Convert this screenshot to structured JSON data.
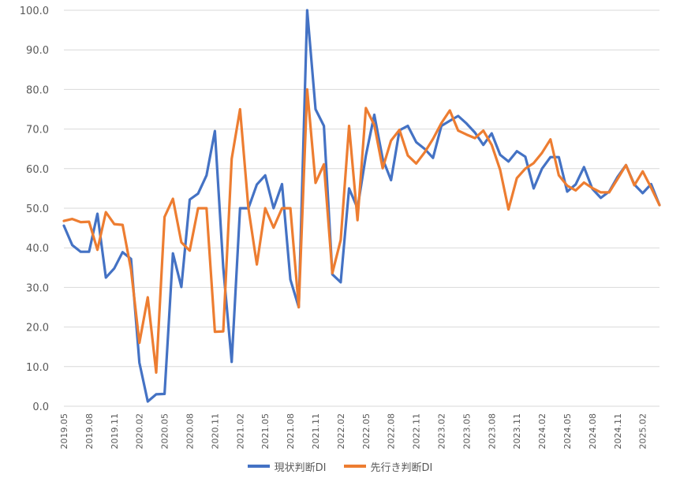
{
  "chart_data": {
    "type": "line",
    "title": "",
    "xlabel": "",
    "ylabel": "",
    "ylim": [
      0,
      100
    ],
    "y_ticks": [
      "100.0",
      "90.0",
      "80.0",
      "70.0",
      "60.0",
      "50.0",
      "40.0",
      "30.0",
      "20.0",
      "10.0",
      "0.0"
    ],
    "grid": true,
    "legend_position": "bottom",
    "x_tick_labels": [
      "2019.05",
      "2019.08",
      "2019.11",
      "2020.02",
      "2020.05",
      "2020.08",
      "2020.11",
      "2021.02",
      "2021.05",
      "2021.08",
      "2021.11",
      "2022.02",
      "2022.05",
      "2022.08",
      "2022.11",
      "2023.02",
      "2023.05",
      "2023.08",
      "2023.11",
      "2024.02",
      "2024.05",
      "2024.08",
      "2024.11",
      "2025.02"
    ],
    "x": [
      "2019.05",
      "2019.06",
      "2019.07",
      "2019.08",
      "2019.09",
      "2019.10",
      "2019.11",
      "2019.12",
      "2020.01",
      "2020.02",
      "2020.03",
      "2020.04",
      "2020.05",
      "2020.06",
      "2020.07",
      "2020.08",
      "2020.09",
      "2020.10",
      "2020.11",
      "2020.12",
      "2021.01",
      "2021.02",
      "2021.03",
      "2021.04",
      "2021.05",
      "2021.06",
      "2021.07",
      "2021.08",
      "2021.09",
      "2021.10",
      "2021.11",
      "2021.12",
      "2022.01",
      "2022.02",
      "2022.03",
      "2022.04",
      "2022.05",
      "2022.06",
      "2022.07",
      "2022.08",
      "2022.09",
      "2022.10",
      "2022.11",
      "2022.12",
      "2023.01",
      "2023.02",
      "2023.03",
      "2023.04",
      "2023.05",
      "2023.06",
      "2023.07",
      "2023.08",
      "2023.09",
      "2023.10",
      "2023.11",
      "2023.12",
      "2024.01",
      "2024.02",
      "2024.03",
      "2024.04",
      "2024.05",
      "2024.06",
      "2024.07",
      "2024.08",
      "2024.09",
      "2024.10",
      "2024.11",
      "2024.12",
      "2025.01",
      "2025.02",
      "2025.03",
      "2025.04"
    ],
    "series": [
      {
        "name": "現状判断DI",
        "color": "#4472c4",
        "values": [
          45.6,
          40.7,
          39.0,
          39.0,
          48.6,
          32.5,
          34.8,
          38.9,
          37.2,
          11.0,
          1.2,
          3.0,
          3.1,
          38.6,
          30.1,
          52.2,
          53.7,
          58.3,
          69.5,
          35.0,
          11.2,
          50.0,
          50.0,
          56.0,
          58.3,
          50.0,
          56.1,
          32.0,
          25.0,
          100.0,
          75.0,
          70.8,
          33.3,
          31.3,
          55.0,
          50.0,
          63.3,
          73.6,
          62.5,
          57.1,
          69.7,
          70.8,
          66.7,
          65.0,
          62.7,
          70.8,
          72.1,
          73.3,
          71.4,
          69.1,
          66.0,
          68.9,
          63.5,
          61.8,
          64.4,
          63.0,
          55.0,
          60.0,
          62.9,
          62.9,
          54.2,
          56.0,
          60.4,
          54.9,
          52.6,
          54.2,
          57.9,
          60.9,
          56.0,
          53.8,
          56.1,
          50.8
        ]
      },
      {
        "name": "先行き判断DI",
        "color": "#ed7d31",
        "values": [
          46.8,
          47.3,
          46.5,
          46.6,
          39.5,
          49.0,
          46.0,
          45.8,
          34.5,
          16.0,
          27.5,
          8.5,
          47.8,
          52.4,
          41.4,
          39.3,
          50.0,
          50.0,
          18.8,
          18.9,
          62.5,
          75.0,
          50.0,
          35.8,
          50.0,
          45.1,
          50.0,
          50.0,
          25.0,
          80.0,
          56.4,
          61.1,
          33.6,
          42.0,
          70.8,
          47.0,
          75.3,
          71.0,
          60.1,
          67.1,
          69.8,
          63.3,
          61.3,
          64.1,
          67.5,
          71.5,
          74.7,
          69.6,
          68.6,
          67.7,
          69.6,
          66.0,
          59.7,
          49.7,
          57.6,
          60.0,
          61.4,
          64.0,
          67.4,
          58.3,
          55.7,
          54.5,
          56.5,
          55.1,
          54.0,
          54.0,
          57.4,
          60.9,
          55.8,
          59.3,
          55.2,
          50.8
        ]
      }
    ]
  }
}
